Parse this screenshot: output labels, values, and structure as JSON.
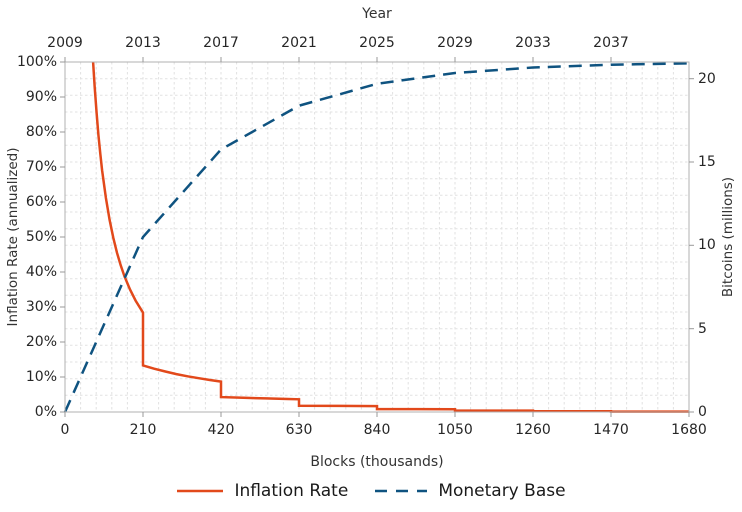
{
  "chart_data": {
    "type": "line",
    "top_axis_title": "Year",
    "xlabel": "Blocks (thousands)",
    "ylabel_left": "Inflation Rate (annualized)",
    "ylabel_right": "Bitcoins (millions)",
    "x_axis": {
      "min": 0,
      "max": 1680,
      "tick_values": [
        0,
        210,
        420,
        630,
        840,
        1050,
        1260,
        1470,
        1680
      ],
      "tick_labels": [
        "0",
        "210",
        "420",
        "630",
        "840",
        "1050",
        "1260",
        "1470",
        "1680"
      ]
    },
    "top_axis": {
      "tick_values": [
        0,
        210,
        420,
        630,
        840,
        1050,
        1260,
        1470
      ],
      "tick_labels": [
        "2009",
        "2013",
        "2017",
        "2021",
        "2025",
        "2029",
        "2033",
        "2037"
      ]
    },
    "y_left": {
      "min": 0,
      "max": 100,
      "tick_values": [
        0,
        10,
        20,
        30,
        40,
        50,
        60,
        70,
        80,
        90,
        100
      ],
      "tick_labels": [
        "0%",
        "10%",
        "20%",
        "30%",
        "40%",
        "50%",
        "60%",
        "70%",
        "80%",
        "90%",
        "100%"
      ]
    },
    "y_right": {
      "min": 0,
      "max": 21,
      "tick_values": [
        0,
        5,
        10,
        15,
        20
      ],
      "tick_labels": [
        "0",
        "5",
        "10",
        "15",
        "20"
      ]
    },
    "grid": {
      "color": "#e2e2e2",
      "x_divisions": 40,
      "y_divisions": 21
    },
    "frame_color": "#b0b0b0",
    "tick_color": "#999999",
    "legend_labels": [
      "Inflation Rate",
      "Monetary Base"
    ],
    "series": [
      {
        "name": "Inflation Rate",
        "axis": "left",
        "style": "solid",
        "color": "#e2491b",
        "points": [
          [
            75.7,
            100
          ],
          [
            80,
            92.76
          ],
          [
            85,
            85.46
          ],
          [
            90,
            79.2
          ],
          [
            95,
            73.79
          ],
          [
            100,
            69.05
          ],
          [
            110,
            61.17
          ],
          [
            120,
            54.88
          ],
          [
            130,
            49.76
          ],
          [
            140,
            45.5
          ],
          [
            150,
            41.91
          ],
          [
            160,
            38.84
          ],
          [
            175,
            34.99
          ],
          [
            190,
            31.83
          ],
          [
            210,
            28.4
          ],
          [
            210,
            13.31
          ],
          [
            240,
            12.37
          ],
          [
            270,
            11.56
          ],
          [
            300,
            10.84
          ],
          [
            330,
            10.21
          ],
          [
            360,
            9.65
          ],
          [
            390,
            9.14
          ],
          [
            420,
            8.69
          ],
          [
            420,
            4.26
          ],
          [
            480,
            4.06
          ],
          [
            540,
            3.88
          ],
          [
            600,
            3.71
          ],
          [
            630,
            3.64
          ],
          [
            630,
            1.8
          ],
          [
            735,
            1.74
          ],
          [
            840,
            1.68
          ],
          [
            840,
            0.84
          ],
          [
            945,
            0.82
          ],
          [
            1050,
            0.81
          ],
          [
            1050,
            0.4
          ],
          [
            1260,
            0.4
          ],
          [
            1260,
            0.2
          ],
          [
            1470,
            0.2
          ],
          [
            1470,
            0.1
          ],
          [
            1680,
            0.1
          ]
        ]
      },
      {
        "name": "Monetary Base",
        "axis": "right",
        "style": "dashed",
        "color": "#0f5380",
        "points": [
          [
            0,
            0
          ],
          [
            210,
            10.5
          ],
          [
            420,
            15.75
          ],
          [
            630,
            18.38
          ],
          [
            840,
            19.69
          ],
          [
            1050,
            20.34
          ],
          [
            1260,
            20.67
          ],
          [
            1470,
            20.84
          ],
          [
            1680,
            20.92
          ]
        ]
      }
    ]
  }
}
